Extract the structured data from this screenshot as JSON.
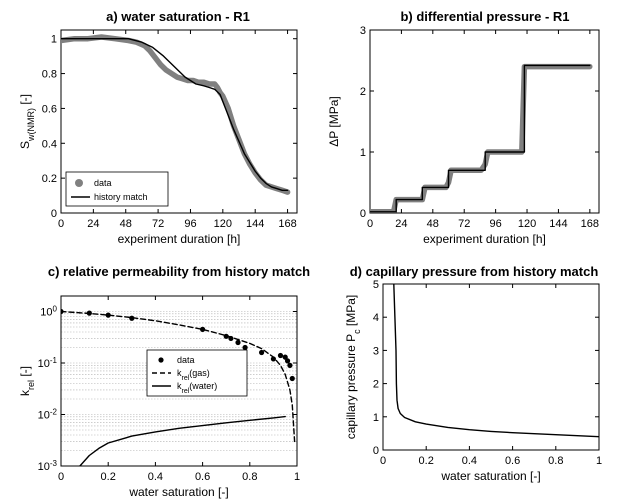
{
  "figure": {
    "background": "#ffffff",
    "data_color": "#808080",
    "model_color": "#000000",
    "grid_color": "#b0b0b0"
  },
  "chart_data": [
    {
      "id": "a",
      "type": "line",
      "title": "a) water saturation - R1",
      "xlabel": "experiment duration [h]",
      "ylabel": {
        "main": "S",
        "sub": "w(NMR)",
        "suffix": " [-]"
      },
      "xlim": [
        0,
        175
      ],
      "ylim": [
        0,
        1.05
      ],
      "xticks": [
        0,
        24,
        48,
        72,
        96,
        120,
        144,
        168
      ],
      "yticks": [
        0,
        0.2,
        0.4,
        0.6,
        0.8,
        1
      ],
      "ytick_labels": [
        "0",
        "0.2",
        "0.4",
        "0.6",
        "0.8",
        "1"
      ],
      "grid": false,
      "legend_position": "bottom-left",
      "series": [
        {
          "name": "data",
          "style": "thick-gray",
          "x": [
            0,
            10,
            20,
            30,
            40,
            50,
            56,
            62,
            66,
            70,
            74,
            78,
            82,
            86,
            90,
            94,
            98,
            102,
            106,
            110,
            114,
            116,
            118,
            120,
            124,
            128,
            132,
            136,
            140,
            144,
            148,
            152,
            156,
            160,
            164,
            168
          ],
          "y": [
            0.99,
            1.0,
            1.0,
            1.01,
            1.0,
            0.99,
            0.98,
            0.96,
            0.93,
            0.89,
            0.85,
            0.82,
            0.8,
            0.78,
            0.77,
            0.76,
            0.76,
            0.75,
            0.75,
            0.74,
            0.74,
            0.72,
            0.69,
            0.67,
            0.6,
            0.5,
            0.42,
            0.34,
            0.28,
            0.23,
            0.19,
            0.16,
            0.15,
            0.14,
            0.13,
            0.12
          ]
        },
        {
          "name": "history match",
          "style": "solid",
          "x": [
            0,
            20,
            40,
            50,
            60,
            68,
            76,
            84,
            92,
            100,
            106,
            110,
            114,
            118,
            120,
            124,
            128,
            132,
            136,
            140,
            144,
            148,
            152,
            156,
            160,
            164,
            168
          ],
          "y": [
            1.0,
            1.0,
            1.0,
            1.0,
            0.98,
            0.95,
            0.9,
            0.84,
            0.78,
            0.74,
            0.73,
            0.72,
            0.71,
            0.68,
            0.64,
            0.56,
            0.48,
            0.41,
            0.34,
            0.29,
            0.24,
            0.2,
            0.17,
            0.15,
            0.14,
            0.13,
            0.13
          ]
        }
      ]
    },
    {
      "id": "b",
      "type": "line",
      "title": "b) differential pressure - R1",
      "xlabel": "experiment duration [h]",
      "ylabel": {
        "main": "ΔP [MPa]"
      },
      "xlim": [
        0,
        175
      ],
      "ylim": [
        0,
        3
      ],
      "xticks": [
        0,
        24,
        48,
        72,
        96,
        120,
        144,
        168
      ],
      "yticks": [
        0,
        1,
        2,
        3
      ],
      "ytick_labels": [
        "0",
        "1",
        "2",
        "3"
      ],
      "grid": false,
      "series": [
        {
          "style": "thick-gray",
          "x": [
            0,
            18,
            20,
            40,
            42,
            58,
            60,
            62,
            72,
            74,
            85,
            88,
            90,
            110,
            116,
            118,
            168
          ],
          "y": [
            0.02,
            0.02,
            0.22,
            0.22,
            0.42,
            0.42,
            0.5,
            0.7,
            0.7,
            0.7,
            0.7,
            0.8,
            1.0,
            1.0,
            1.0,
            2.4,
            2.4
          ]
        },
        {
          "style": "solid",
          "x": [
            0,
            20,
            20,
            40,
            40,
            60,
            60,
            72,
            72,
            88,
            88,
            118,
            118,
            168
          ],
          "y": [
            0.02,
            0.02,
            0.22,
            0.22,
            0.42,
            0.42,
            0.7,
            0.7,
            0.7,
            0.7,
            1.0,
            1.0,
            2.42,
            2.42
          ]
        }
      ]
    },
    {
      "id": "c",
      "type": "line",
      "title": "c) relative permeability from history match",
      "xlabel": "water saturation [-]",
      "ylabel": {
        "main": "k",
        "sub": "rel",
        "suffix": " [-]"
      },
      "xlim": [
        0,
        1
      ],
      "ylim": [
        0.001,
        2
      ],
      "yscale": "log",
      "xticks": [
        0,
        0.2,
        0.4,
        0.6,
        0.8,
        1
      ],
      "xtick_labels": [
        "0",
        "0.2",
        "0.4",
        "0.6",
        "0.8",
        "1"
      ],
      "yticks": [
        0.001,
        0.01,
        0.1,
        1
      ],
      "ytick_labels": [
        {
          "base": "10",
          "exp": "-3"
        },
        {
          "base": "10",
          "exp": "-2"
        },
        {
          "base": "10",
          "exp": "-1"
        },
        {
          "base": "10",
          "exp": "0"
        }
      ],
      "grid": true,
      "legend_position": "center-right",
      "series": [
        {
          "name": "data",
          "style": "markers",
          "x": [
            0.0,
            0.12,
            0.2,
            0.3,
            0.6,
            0.7,
            0.72,
            0.75,
            0.78,
            0.85,
            0.9,
            0.93,
            0.95,
            0.96,
            0.97,
            0.98
          ],
          "y": [
            1.0,
            0.93,
            0.85,
            0.74,
            0.45,
            0.33,
            0.3,
            0.25,
            0.2,
            0.16,
            0.12,
            0.14,
            0.13,
            0.11,
            0.09,
            0.05
          ]
        },
        {
          "name_parts": {
            "main": "k",
            "sub": "rel",
            "suffix": "(gas)"
          },
          "style": "dashed",
          "x": [
            0,
            0.1,
            0.2,
            0.3,
            0.4,
            0.5,
            0.6,
            0.7,
            0.8,
            0.85,
            0.9,
            0.93,
            0.95,
            0.97,
            0.98,
            0.99
          ],
          "y": [
            1.0,
            0.93,
            0.85,
            0.76,
            0.66,
            0.55,
            0.45,
            0.34,
            0.24,
            0.19,
            0.13,
            0.09,
            0.06,
            0.03,
            0.015,
            0.003
          ]
        },
        {
          "name_parts": {
            "main": "k",
            "sub": "rel",
            "suffix": "(water)"
          },
          "style": "solid",
          "x": [
            0.08,
            0.12,
            0.16,
            0.2,
            0.3,
            0.4,
            0.5,
            0.6,
            0.7,
            0.8,
            0.9,
            0.95
          ],
          "y": [
            0.001,
            0.0016,
            0.0022,
            0.0028,
            0.0038,
            0.0046,
            0.0054,
            0.0061,
            0.0069,
            0.0077,
            0.0086,
            0.0091
          ]
        }
      ]
    },
    {
      "id": "d",
      "type": "line",
      "title": "d) capillary pressure from history match",
      "xlabel": "water saturation [-]",
      "ylabel": {
        "main": "capillary pressure P",
        "sub": "c",
        "suffix": " [MPa]"
      },
      "xlim": [
        0,
        1
      ],
      "ylim": [
        0,
        5
      ],
      "xticks": [
        0,
        0.2,
        0.4,
        0.6,
        0.8,
        1
      ],
      "xtick_labels": [
        "0",
        "0.2",
        "0.4",
        "0.6",
        "0.8",
        "1"
      ],
      "yticks": [
        0,
        1,
        2,
        3,
        4,
        5
      ],
      "ytick_labels": [
        "0",
        "1",
        "2",
        "3",
        "4",
        "5"
      ],
      "grid": false,
      "series": [
        {
          "style": "solid",
          "x": [
            0.05,
            0.055,
            0.06,
            0.062,
            0.065,
            0.07,
            0.08,
            0.1,
            0.15,
            0.2,
            0.3,
            0.4,
            0.5,
            0.6,
            0.7,
            0.8,
            0.9,
            1.0
          ],
          "y": [
            5.0,
            4.0,
            3.0,
            2.0,
            1.5,
            1.25,
            1.1,
            0.98,
            0.85,
            0.78,
            0.68,
            0.61,
            0.56,
            0.52,
            0.49,
            0.46,
            0.43,
            0.4
          ]
        }
      ]
    }
  ]
}
